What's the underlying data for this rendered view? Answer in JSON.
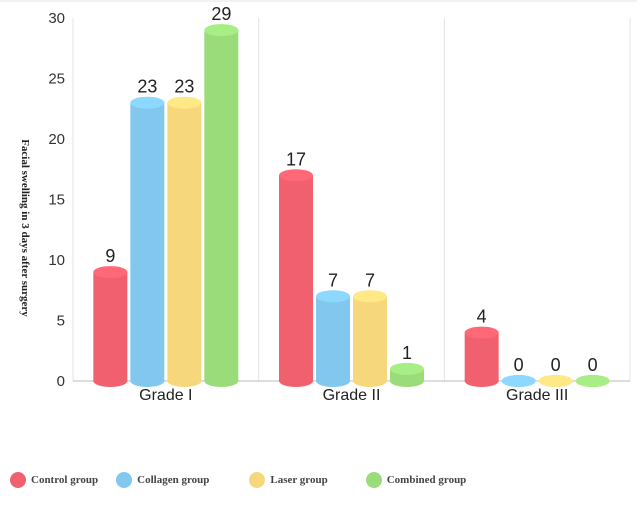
{
  "chart_data": {
    "type": "bar",
    "title": "",
    "xlabel": "",
    "ylabel": "Facial swelling in 3 days after surgery",
    "categories": [
      "Grade I",
      "Grade II",
      "Grade III"
    ],
    "ylim": [
      0,
      30
    ],
    "yticks": [
      0,
      5,
      10,
      15,
      20,
      25,
      30
    ],
    "grid": "vertical category separators",
    "legend": "bottom",
    "series": [
      {
        "name": "Control group",
        "color": "#f0606e",
        "values": [
          9,
          17,
          4
        ]
      },
      {
        "name": "Collagen group",
        "color": "#82c8ee",
        "values": [
          23,
          7,
          0
        ]
      },
      {
        "name": "Laser group",
        "color": "#f7d77c",
        "values": [
          23,
          7,
          0
        ]
      },
      {
        "name": "Combined group",
        "color": "#9bdc7a",
        "values": [
          29,
          1,
          0
        ]
      }
    ]
  }
}
